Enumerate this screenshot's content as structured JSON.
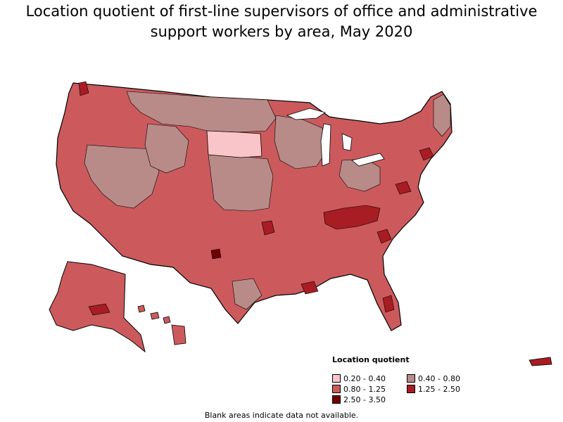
{
  "title": "Location quotient of first-line supervisors of office and administrative support workers by area, May 2020",
  "legend": {
    "title": "Location quotient",
    "items": [
      {
        "label": "0.20 - 0.40",
        "color": "#f9c5c8"
      },
      {
        "label": "0.40 - 0.80",
        "color": "#b88a88"
      },
      {
        "label": "0.80 - 1.25",
        "color": "#cc5a5c"
      },
      {
        "label": "1.25 - 2.50",
        "color": "#a81c24"
      },
      {
        "label": "2.50 - 3.50",
        "color": "#6e0000"
      }
    ]
  },
  "footnote": "Blank areas indicate data not available.",
  "colors": {
    "border": "#000000",
    "background": "#ffffff"
  }
}
